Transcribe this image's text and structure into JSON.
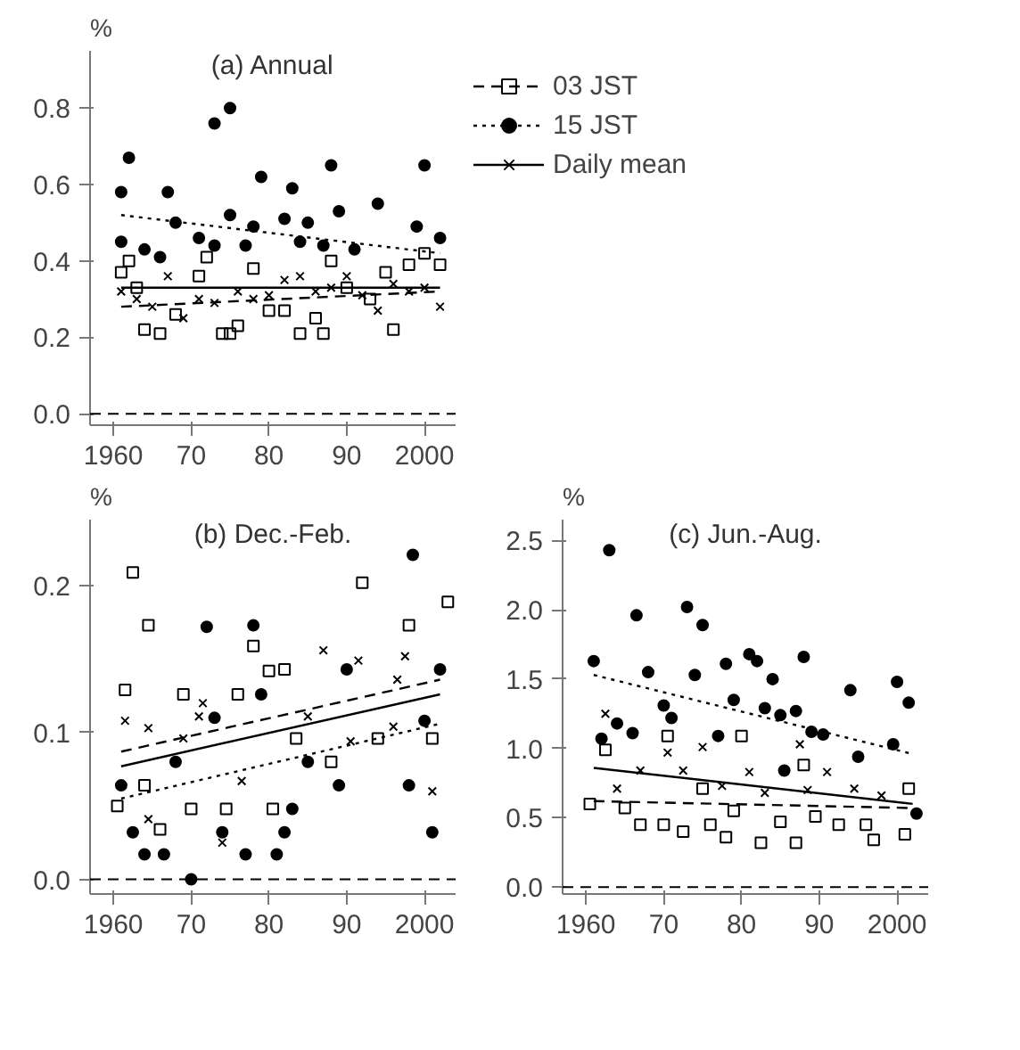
{
  "chart_data": [
    {
      "type": "scatter",
      "title": "(a) Annual",
      "ylabel": "%",
      "xlim": [
        1957,
        2004
      ],
      "ylim": [
        -0.03,
        0.95
      ],
      "xticks": [
        {
          "value": 1960,
          "label": "1960"
        },
        {
          "value": 1970,
          "label": "70"
        },
        {
          "value": 1980,
          "label": "80"
        },
        {
          "value": 1990,
          "label": "90"
        },
        {
          "value": 2000,
          "label": "2000"
        }
      ],
      "yticks": [
        {
          "value": 0,
          "label": "0.0"
        },
        {
          "value": 0.2,
          "label": "0.2"
        },
        {
          "value": 0.4,
          "label": "0.4"
        },
        {
          "value": 0.6,
          "label": "0.6"
        },
        {
          "value": 0.8,
          "label": "0.8"
        }
      ],
      "grid": false,
      "legend": "right",
      "ref_lines": [
        {
          "axis": "y",
          "value": 0,
          "line_style": "dashed",
          "color": "#000000"
        }
      ],
      "series": [
        {
          "marker": "square",
          "color": "#000000",
          "x": [
            1961,
            1962,
            1963,
            1964,
            1966,
            1968,
            1971,
            1972,
            1974,
            1975,
            1976,
            1978,
            1980,
            1982,
            1984,
            1986,
            1987,
            1988,
            1990,
            1993,
            1995,
            1996,
            1998,
            2000,
            2002
          ],
          "values": [
            0.37,
            0.4,
            0.33,
            0.22,
            0.21,
            0.26,
            0.36,
            0.41,
            0.21,
            0.21,
            0.23,
            0.38,
            0.27,
            0.27,
            0.21,
            0.25,
            0.21,
            0.4,
            0.33,
            0.3,
            0.37,
            0.22,
            0.39,
            0.42,
            0.39
          ]
        },
        {
          "marker": "circle",
          "color": "#000000",
          "x": [
            1961,
            1962,
            1961,
            1964,
            1966,
            1967,
            1968,
            1971,
            1973,
            1973,
            1975,
            1975,
            1977,
            1979,
            1978,
            1982,
            1983,
            1984,
            1985,
            1987,
            1988,
            1989,
            1991,
            1994,
            1999,
            2000,
            2002
          ],
          "values": [
            0.58,
            0.67,
            0.45,
            0.43,
            0.41,
            0.58,
            0.5,
            0.46,
            0.44,
            0.76,
            0.8,
            0.52,
            0.44,
            0.62,
            0.49,
            0.51,
            0.59,
            0.45,
            0.5,
            0.44,
            0.65,
            0.53,
            0.43,
            0.55,
            0.49,
            0.65,
            0.46
          ]
        },
        {
          "marker": "cross",
          "color": "#000000",
          "x": [
            1961,
            1963,
            1965,
            1967,
            1969,
            1971,
            1973,
            1976,
            1978,
            1980,
            1982,
            1984,
            1986,
            1988,
            1990,
            1992,
            1994,
            1996,
            1998,
            2000,
            2002
          ],
          "values": [
            0.32,
            0.3,
            0.28,
            0.36,
            0.25,
            0.3,
            0.29,
            0.32,
            0.3,
            0.31,
            0.35,
            0.36,
            0.32,
            0.33,
            0.36,
            0.31,
            0.27,
            0.34,
            0.32,
            0.33,
            0.28
          ]
        },
        {
          "name": "03 JST",
          "type": "line",
          "line_style": "dashed",
          "color": "#000000",
          "x": [
            1961,
            2002
          ],
          "values": [
            0.28,
            0.32
          ]
        },
        {
          "name": "15 JST",
          "type": "line",
          "line_style": "dotted",
          "color": "#000000",
          "x": [
            1961,
            2002
          ],
          "values": [
            0.52,
            0.42
          ]
        },
        {
          "name": "Daily mean",
          "type": "line",
          "line_style": "solid",
          "color": "#000000",
          "x": [
            1961,
            2002
          ],
          "values": [
            0.33,
            0.33
          ]
        }
      ]
    },
    {
      "type": "scatter",
      "title": "(b) Dec.-Feb.",
      "ylabel": "%",
      "xlim": [
        1957,
        2004
      ],
      "ylim": [
        -0.01,
        0.245
      ],
      "xticks": [
        {
          "value": 1960,
          "label": "1960"
        },
        {
          "value": 1970,
          "label": "70"
        },
        {
          "value": 1980,
          "label": "80"
        },
        {
          "value": 1990,
          "label": "90"
        },
        {
          "value": 2000,
          "label": "2000"
        }
      ],
      "yticks": [
        {
          "value": 0,
          "label": "0.0"
        },
        {
          "value": 0.1,
          "label": "0.1"
        },
        {
          "value": 0.2,
          "label": "0.2"
        }
      ],
      "grid": false,
      "ref_lines": [
        {
          "axis": "y",
          "value": 0,
          "line_style": "dashed",
          "color": "#000000"
        }
      ],
      "series": [
        {
          "marker": "square",
          "color": "#000000",
          "x": [
            1962.5,
            1964.5,
            1961.5,
            1969,
            1976,
            1978,
            1980,
            1982,
            1992,
            1998,
            2003,
            2001,
            1970,
            1974.5,
            1980.5,
            1988,
            1964,
            1960.5,
            1966,
            1983.5,
            1994
          ],
          "values": [
            0.209,
            0.173,
            0.129,
            0.126,
            0.126,
            0.159,
            0.142,
            0.143,
            0.202,
            0.173,
            0.189,
            0.096,
            0.048,
            0.048,
            0.048,
            0.08,
            0.064,
            0.05,
            0.034,
            0.096,
            0.096
          ]
        },
        {
          "marker": "circle",
          "color": "#000000",
          "x": [
            1962.5,
            1964,
            1966.5,
            1972,
            1973,
            1974,
            1978,
            1977,
            1981,
            1982,
            1979,
            1983,
            1985,
            1989,
            1990,
            1998.5,
            1998,
            2000,
            2001,
            2002,
            1970,
            1968,
            1961
          ],
          "values": [
            0.032,
            0.017,
            0.017,
            0.172,
            0.11,
            0.032,
            0.173,
            0.017,
            0.017,
            0.032,
            0.126,
            0.048,
            0.08,
            0.064,
            0.143,
            0.221,
            0.064,
            0.108,
            0.032,
            0.143,
            0.0,
            0.08,
            0.064
          ]
        },
        {
          "marker": "cross",
          "color": "#000000",
          "x": [
            1961.5,
            1964.5,
            1971.5,
            1971,
            1974,
            1987,
            1991.5,
            1997.5,
            1996.5,
            2001,
            1964.5,
            1976.5,
            1985,
            1990.5,
            1996,
            1969
          ],
          "values": [
            0.108,
            0.103,
            0.12,
            0.111,
            0.025,
            0.156,
            0.149,
            0.152,
            0.136,
            0.06,
            0.041,
            0.067,
            0.111,
            0.094,
            0.104,
            0.096
          ]
        },
        {
          "type": "line",
          "line_style": "dashed",
          "color": "#000000",
          "x": [
            1961,
            2002
          ],
          "values": [
            0.087,
            0.136
          ]
        },
        {
          "type": "line",
          "line_style": "dotted",
          "color": "#000000",
          "x": [
            1961,
            2002
          ],
          "values": [
            0.055,
            0.106
          ]
        },
        {
          "type": "line",
          "line_style": "solid",
          "color": "#000000",
          "x": [
            1961,
            2002
          ],
          "values": [
            0.077,
            0.126
          ]
        }
      ]
    },
    {
      "type": "scatter",
      "title": "(c) Jun.-Aug.",
      "ylabel": "%",
      "xlim": [
        1957,
        2004
      ],
      "ylim": [
        -0.05,
        2.65
      ],
      "xticks": [
        {
          "value": 1960,
          "label": "1960"
        },
        {
          "value": 1970,
          "label": "70"
        },
        {
          "value": 1980,
          "label": "80"
        },
        {
          "value": 1990,
          "label": "90"
        },
        {
          "value": 2000,
          "label": "2000"
        }
      ],
      "yticks": [
        {
          "value": 0,
          "label": "0.0"
        },
        {
          "value": 0.5,
          "label": "0.5"
        },
        {
          "value": 1.0,
          "label": "1.0"
        },
        {
          "value": 1.5,
          "label": "1.5"
        },
        {
          "value": 2.0,
          "label": "2.0"
        },
        {
          "value": 2.5,
          "label": "2.5"
        }
      ],
      "grid": false,
      "ref_lines": [
        {
          "axis": "y",
          "value": 0,
          "line_style": "dashed",
          "color": "#000000"
        }
      ],
      "series": [
        {
          "marker": "square",
          "color": "#000000",
          "x": [
            1962.5,
            1970.5,
            1980,
            1988,
            1967,
            1970,
            1972.5,
            1976,
            1978,
            1982.5,
            1987,
            1979,
            1985,
            1989.5,
            1992.5,
            1996,
            1997,
            2001,
            1960.5,
            1965,
            1975,
            2001.5
          ],
          "values": [
            0.99,
            1.09,
            1.09,
            0.88,
            0.45,
            0.45,
            0.4,
            0.45,
            0.36,
            0.32,
            0.32,
            0.55,
            0.47,
            0.51,
            0.45,
            0.45,
            0.34,
            0.38,
            0.6,
            0.57,
            0.71,
            0.71
          ]
        },
        {
          "marker": "circle",
          "color": "#000000",
          "x": [
            1961,
            1963,
            1962,
            1964,
            1966.5,
            1966,
            1968,
            1970,
            1971,
            1973,
            1974,
            1975,
            1977,
            1978,
            1979,
            1981,
            1982,
            1984,
            1983,
            1985,
            1987,
            1988,
            1989,
            1990.5,
            1994,
            1995,
            1999.5,
            2000,
            2001.5,
            1985.5,
            2002.5
          ],
          "values": [
            1.63,
            2.43,
            1.07,
            1.18,
            1.96,
            1.11,
            1.55,
            1.31,
            1.22,
            2.02,
            1.53,
            1.89,
            1.09,
            1.61,
            1.35,
            1.68,
            1.63,
            1.5,
            1.29,
            1.24,
            1.27,
            1.66,
            1.12,
            1.1,
            1.42,
            0.94,
            1.03,
            1.48,
            1.33,
            0.84,
            0.53
          ]
        },
        {
          "marker": "cross",
          "color": "#000000",
          "x": [
            1962.5,
            1975,
            1987.5,
            1991,
            1988.5,
            1970.5,
            1967,
            1981,
            1964,
            1972.5,
            1998,
            1994.5,
            1983,
            1977.5
          ],
          "values": [
            1.25,
            1.01,
            1.03,
            0.83,
            0.7,
            0.97,
            0.84,
            0.83,
            0.71,
            0.84,
            0.66,
            0.71,
            0.68,
            0.73
          ]
        },
        {
          "type": "line",
          "line_style": "dashed",
          "color": "#000000",
          "x": [
            1961,
            2002
          ],
          "values": [
            0.62,
            0.57
          ]
        },
        {
          "type": "line",
          "line_style": "dotted",
          "color": "#000000",
          "x": [
            1961,
            2002
          ],
          "values": [
            1.53,
            0.96
          ]
        },
        {
          "type": "line",
          "line_style": "solid",
          "color": "#000000",
          "x": [
            1961,
            2002
          ],
          "values": [
            0.86,
            0.6
          ]
        }
      ]
    }
  ]
}
